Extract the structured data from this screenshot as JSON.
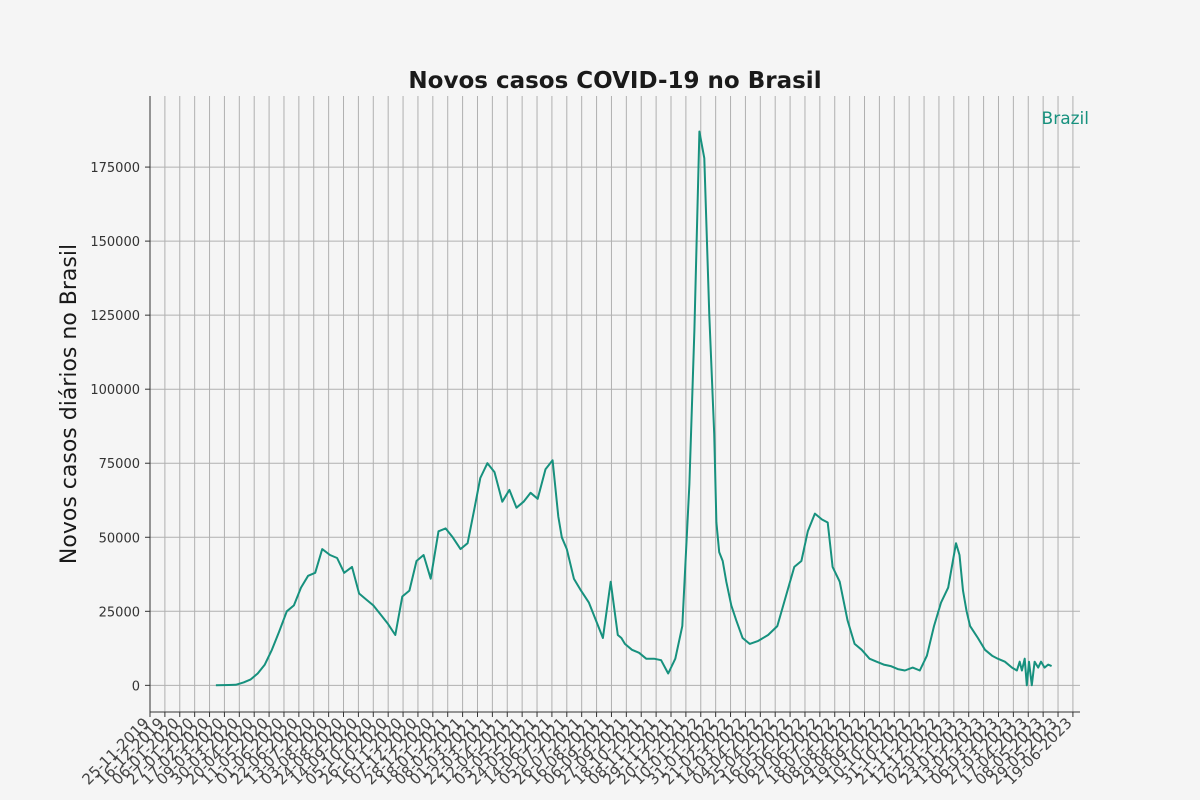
{
  "chart_data": {
    "type": "line",
    "title": "Novos casos COVID-19 no Brasil",
    "xlabel": "",
    "ylabel": "Novos casos diários no Brasil",
    "ylim": [
      -9000,
      199000
    ],
    "xlim": [
      "2019-11-25",
      "2023-06-29"
    ],
    "yticks": [
      0,
      25000,
      50000,
      75000,
      100000,
      125000,
      150000,
      175000
    ],
    "xticks": [
      "25-11-2019",
      "16-12-2019",
      "06-01-2020",
      "27-01-2020",
      "17-02-2020",
      "09-03-2020",
      "30-03-2020",
      "20-04-2020",
      "11-05-2020",
      "01-06-2020",
      "22-06-2020",
      "13-07-2020",
      "03-08-2020",
      "24-08-2020",
      "14-09-2020",
      "05-10-2020",
      "26-10-2020",
      "16-11-2020",
      "07-12-2020",
      "28-12-2020",
      "18-01-2021",
      "08-02-2021",
      "01-03-2021",
      "22-03-2021",
      "12-04-2021",
      "03-05-2021",
      "24-05-2021",
      "14-06-2021",
      "05-07-2021",
      "26-07-2021",
      "16-08-2021",
      "06-09-2021",
      "27-09-2021",
      "18-10-2021",
      "08-11-2021",
      "29-11-2021",
      "20-12-2021",
      "10-01-2022",
      "31-01-2022",
      "21-02-2022",
      "14-03-2022",
      "04-04-2022",
      "25-04-2022",
      "16-05-2022",
      "06-06-2022",
      "27-06-2022",
      "18-07-2022",
      "08-08-2022",
      "29-08-2022",
      "19-09-2022",
      "10-10-2022",
      "31-10-2022",
      "21-11-2022",
      "12-12-2022",
      "02-01-2023",
      "23-01-2023",
      "13-02-2023",
      "06-03-2023",
      "27-03-2023",
      "17-04-2023",
      "08-05-2023",
      "29-05-2023",
      "19-06-2023"
    ],
    "grid": true,
    "legend": "top-right",
    "series": [
      {
        "name": "Brazil",
        "color": "#17917e",
        "x": [
          "2020-02-26",
          "2020-03-15",
          "2020-03-25",
          "2020-04-05",
          "2020-04-15",
          "2020-04-25",
          "2020-05-05",
          "2020-05-15",
          "2020-05-25",
          "2020-06-05",
          "2020-06-15",
          "2020-06-25",
          "2020-07-05",
          "2020-07-15",
          "2020-07-25",
          "2020-08-05",
          "2020-08-15",
          "2020-08-25",
          "2020-09-05",
          "2020-09-15",
          "2020-09-25",
          "2020-10-05",
          "2020-10-15",
          "2020-10-25",
          "2020-11-05",
          "2020-11-15",
          "2020-11-25",
          "2020-12-05",
          "2020-12-15",
          "2020-12-25",
          "2021-01-05",
          "2021-01-15",
          "2021-01-25",
          "2021-02-05",
          "2021-02-15",
          "2021-02-25",
          "2021-03-05",
          "2021-03-15",
          "2021-03-25",
          "2021-04-05",
          "2021-04-15",
          "2021-04-25",
          "2021-05-05",
          "2021-05-15",
          "2021-05-25",
          "2021-06-05",
          "2021-06-15",
          "2021-06-23",
          "2021-06-28",
          "2021-07-05",
          "2021-07-15",
          "2021-07-25",
          "2021-08-05",
          "2021-08-15",
          "2021-08-25",
          "2021-09-05",
          "2021-09-15",
          "2021-09-20",
          "2021-09-25",
          "2021-10-05",
          "2021-10-15",
          "2021-10-25",
          "2021-11-05",
          "2021-11-15",
          "2021-11-25",
          "2021-12-05",
          "2021-12-15",
          "2021-12-25",
          "2022-01-01",
          "2022-01-08",
          "2022-01-15",
          "2022-01-22",
          "2022-01-29",
          "2022-02-01",
          "2022-02-05",
          "2022-02-10",
          "2022-02-15",
          "2022-02-22",
          "2022-03-01",
          "2022-03-10",
          "2022-03-20",
          "2022-04-01",
          "2022-04-15",
          "2022-04-28",
          "2022-05-10",
          "2022-05-22",
          "2022-06-01",
          "2022-06-10",
          "2022-06-20",
          "2022-06-30",
          "2022-07-08",
          "2022-07-15",
          "2022-07-25",
          "2022-08-05",
          "2022-08-15",
          "2022-08-25",
          "2022-09-05",
          "2022-09-15",
          "2022-09-25",
          "2022-10-05",
          "2022-10-15",
          "2022-10-25",
          "2022-11-05",
          "2022-11-15",
          "2022-11-25",
          "2022-12-05",
          "2022-12-15",
          "2022-12-25",
          "2023-01-05",
          "2023-01-10",
          "2023-01-15",
          "2023-01-20",
          "2023-01-25",
          "2023-02-05",
          "2023-02-15",
          "2023-02-25",
          "2023-03-05",
          "2023-03-15",
          "2023-03-25",
          "2023-04-01",
          "2023-04-05",
          "2023-04-08",
          "2023-04-12",
          "2023-04-15",
          "2023-04-18",
          "2023-04-22",
          "2023-04-26",
          "2023-05-01",
          "2023-05-05",
          "2023-05-10",
          "2023-05-15",
          "2023-05-20"
        ],
        "values": [
          0,
          100,
          200,
          1000,
          2000,
          4000,
          7000,
          12000,
          18000,
          25000,
          27000,
          33000,
          37000,
          38000,
          46000,
          44000,
          43000,
          38000,
          40000,
          31000,
          29000,
          27000,
          24000,
          21000,
          17000,
          30000,
          32000,
          42000,
          44000,
          36000,
          52000,
          53000,
          50000,
          46000,
          48000,
          60000,
          70000,
          75000,
          72000,
          62000,
          66000,
          60000,
          62000,
          65000,
          63000,
          73000,
          76000,
          57000,
          50000,
          46000,
          36000,
          32000,
          28000,
          22000,
          16000,
          35000,
          17000,
          16000,
          14000,
          12000,
          11000,
          9000,
          9000,
          8500,
          4000,
          9000,
          20000,
          68000,
          120000,
          187000,
          178000,
          125000,
          85000,
          55000,
          45000,
          42000,
          35000,
          27000,
          22000,
          16000,
          14000,
          15000,
          17000,
          20000,
          30000,
          40000,
          42000,
          52000,
          58000,
          56000,
          55000,
          40000,
          35000,
          22000,
          14000,
          12000,
          9000,
          8000,
          7000,
          6500,
          5500,
          5000,
          6000,
          5000,
          10000,
          20000,
          28000,
          33000,
          48000,
          44000,
          32000,
          25000,
          20000,
          16000,
          12000,
          10000,
          9000,
          8000,
          6000,
          5000,
          8000,
          5000,
          9000,
          0,
          8000,
          0,
          8000,
          6000,
          8000,
          6000,
          7000,
          6500
        ]
      }
    ]
  }
}
